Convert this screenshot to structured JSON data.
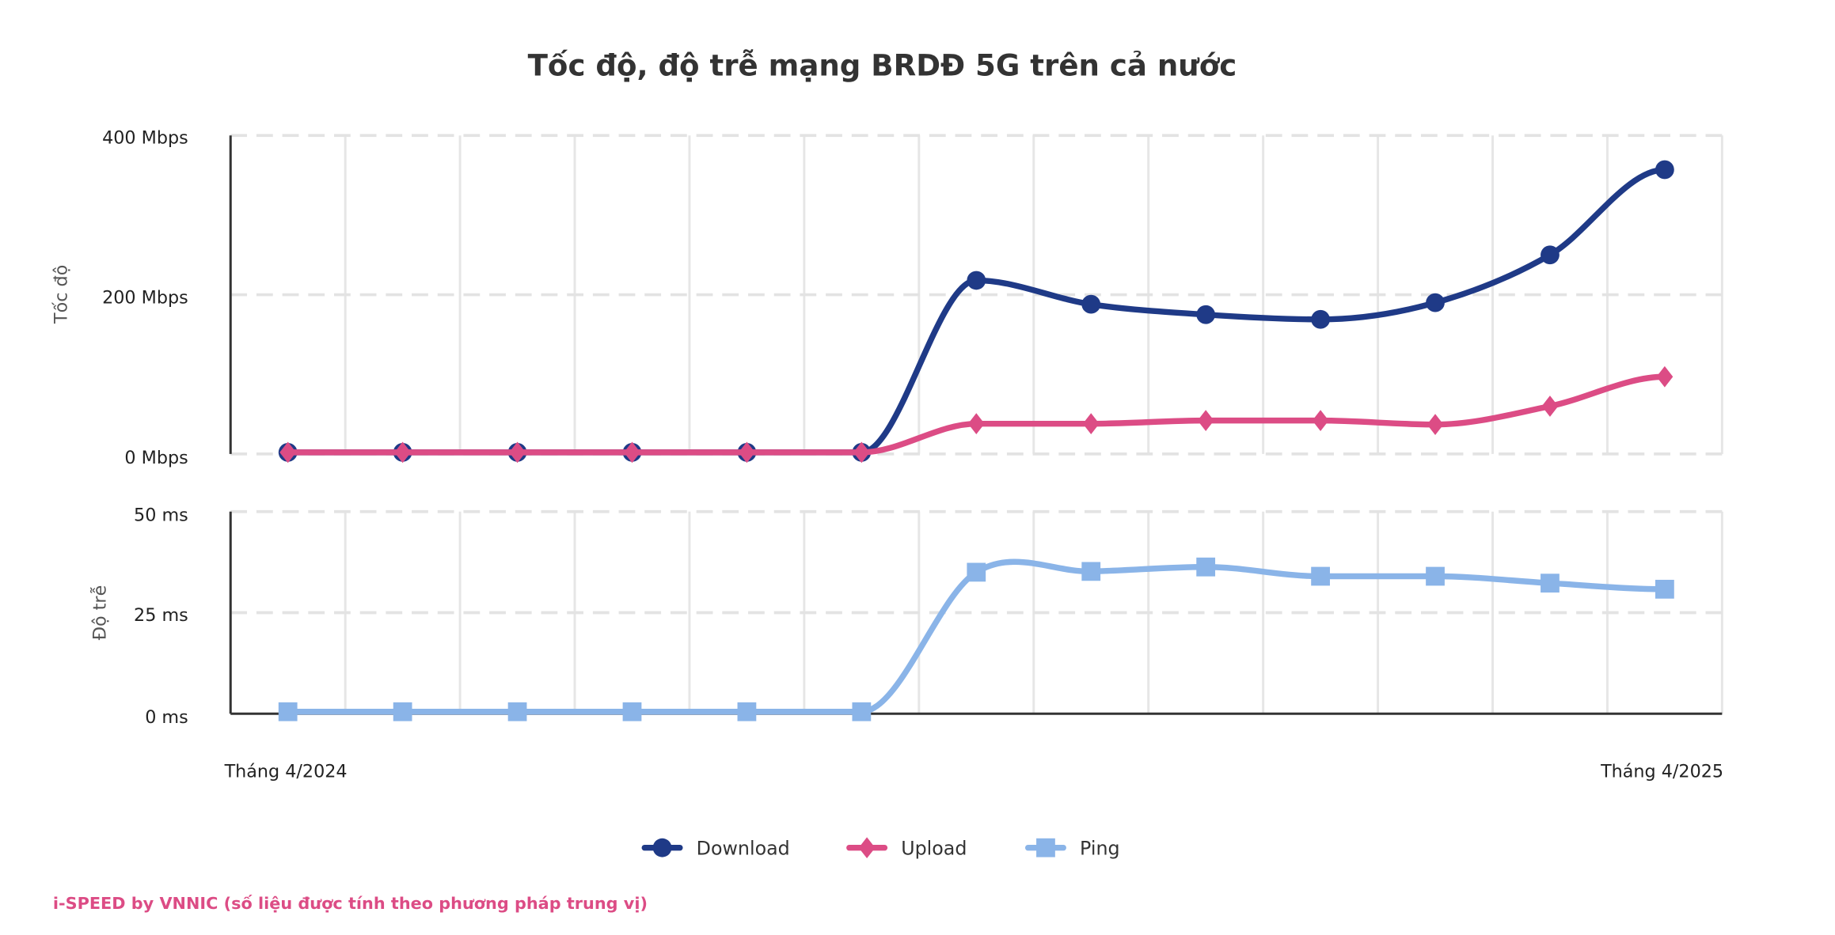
{
  "chart_data": {
    "type": "line",
    "title": "Tốc độ, độ trễ mạng BRDĐ 5G trên cả nước",
    "x": [
      0,
      1,
      2,
      3,
      4,
      5,
      6,
      7,
      8,
      9,
      10,
      11,
      12
    ],
    "x_tick_labels": {
      "first": "Tháng 4/2024",
      "last": "Tháng 4/2025"
    },
    "speed_axis": {
      "label": "Tốc độ",
      "ylim": [
        0,
        400
      ],
      "ticks": [
        0,
        200,
        400
      ],
      "tick_labels": [
        "0 Mbps",
        "200 Mbps",
        "400 Mbps"
      ]
    },
    "latency_axis": {
      "label": "Độ trễ",
      "ylim": [
        0,
        50
      ],
      "ticks": [
        0,
        25,
        50
      ],
      "tick_labels": [
        "0 ms",
        "25 ms",
        "50 ms"
      ]
    },
    "series": [
      {
        "name": "Download",
        "axis": "speed",
        "color": "#1f3a87",
        "marker": "circle",
        "values": [
          2,
          2,
          2,
          2,
          2,
          2,
          218,
          188,
          175,
          169,
          190,
          250,
          357
        ]
      },
      {
        "name": "Upload",
        "axis": "speed",
        "color": "#dc4c85",
        "marker": "diamond",
        "values": [
          2,
          2,
          2,
          2,
          2,
          2,
          38,
          38,
          42,
          42,
          37,
          60,
          97
        ]
      },
      {
        "name": "Ping",
        "axis": "latency",
        "color": "#8ab4e8",
        "marker": "square",
        "values": [
          0.5,
          0.5,
          0.5,
          0.5,
          0.5,
          0.5,
          35,
          35.2,
          36.3,
          34,
          34,
          32.3,
          30.8
        ]
      }
    ],
    "grid": true,
    "legend_position": "bottom-center"
  },
  "credit": "i-SPEED by VNNIC (số liệu được tính theo phương pháp trung vị)"
}
